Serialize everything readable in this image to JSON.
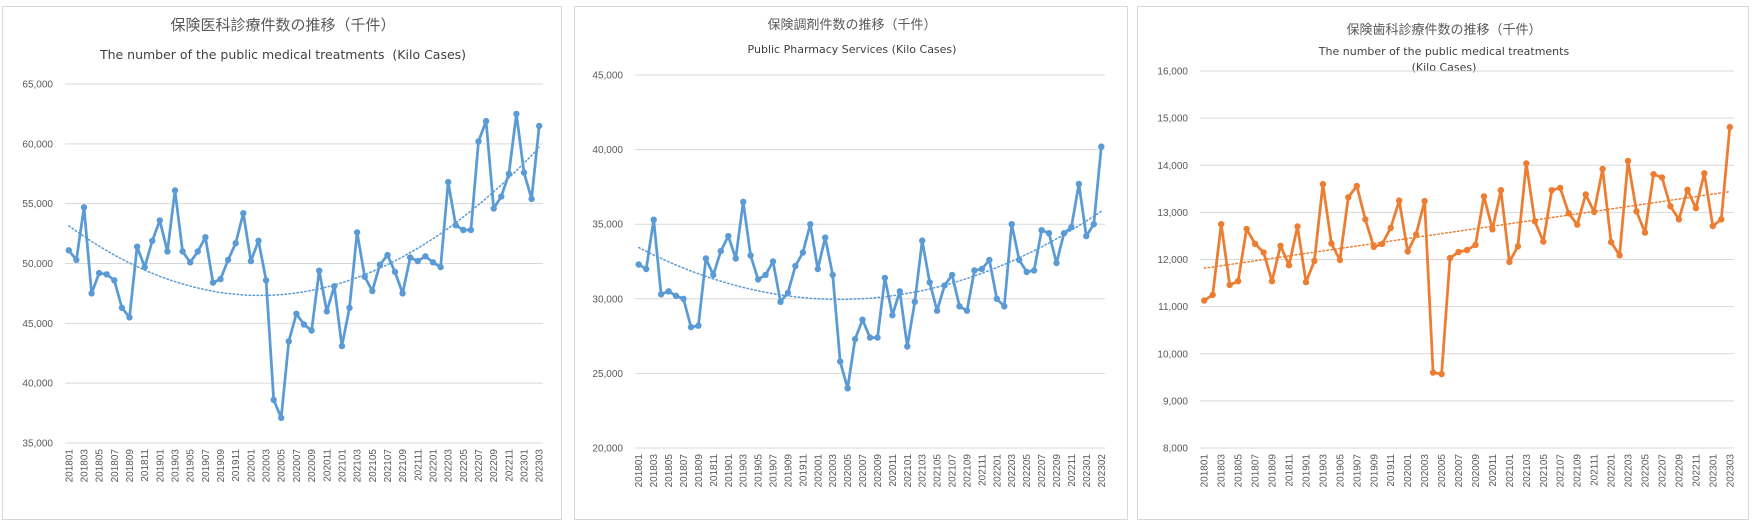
{
  "chart_data": [
    {
      "type": "line",
      "title": "保険医科診療件数の推移（千件）",
      "subtitle_lines": [
        "The number of the public medical treatments  (Kilo Cases)"
      ],
      "ylim": [
        35000,
        65000
      ],
      "yticks": [
        "35,000",
        "40,000",
        "45,000",
        "50,000",
        "55,000",
        "60,000",
        "65,000"
      ],
      "ytick_values": [
        35000,
        40000,
        45000,
        50000,
        55000,
        60000,
        65000
      ],
      "xtick_labels": [
        "201801",
        "201803",
        "201805",
        "201807",
        "201809",
        "201811",
        "201901",
        "201903",
        "201905",
        "201907",
        "201909",
        "201911",
        "202001",
        "202003",
        "202005",
        "202007",
        "202009",
        "202011",
        "202101",
        "202103",
        "202105",
        "202107",
        "202109",
        "202111",
        "202201",
        "202203",
        "202205",
        "202207",
        "202209",
        "202211",
        "202301",
        "202303"
      ],
      "trendline": "polynomial (dotted)",
      "grid": true,
      "color": "#5b9bd5",
      "series": [
        {
          "values": [
            51100,
            50300,
            54700,
            47500,
            49200,
            49100,
            48600,
            46300,
            45500,
            51400,
            49700,
            51900,
            53600,
            51000,
            56100,
            51000,
            50100,
            51000,
            52200,
            48400,
            48700,
            50300,
            51700,
            54200,
            50200,
            51900,
            48600,
            38600,
            37100,
            43500,
            45800,
            44900,
            44400,
            49400,
            46000,
            48100,
            43100,
            46300,
            52600,
            48900,
            47700,
            49900,
            50700,
            49300,
            47500,
            50500,
            50200,
            50600,
            50100,
            49700,
            56800,
            53200,
            52800,
            52800,
            60200,
            61900,
            54600,
            55600,
            57500,
            62500,
            57600,
            55400,
            61500
          ]
        }
      ]
    },
    {
      "type": "line",
      "title": "保険調剤件数の推移（千件）",
      "subtitle_lines": [
        "Public Pharmacy Services (Kilo Cases)"
      ],
      "ylim": [
        20000,
        45000
      ],
      "yticks": [
        "20,000",
        "25,000",
        "30,000",
        "35,000",
        "40,000",
        "45,000"
      ],
      "ytick_values": [
        20000,
        25000,
        30000,
        35000,
        40000,
        45000
      ],
      "xtick_labels": [
        "201801",
        "201803",
        "201805",
        "201807",
        "201809",
        "201811",
        "201901",
        "201903",
        "201905",
        "201907",
        "201909",
        "201911",
        "202001",
        "202003",
        "202005",
        "202007",
        "202009",
        "202011",
        "202101",
        "202103",
        "202105",
        "202107",
        "202109",
        "202111",
        "202201",
        "202203",
        "202205",
        "202207",
        "202209",
        "202211",
        "202301",
        "202302"
      ],
      "trendline": "polynomial (dotted)",
      "grid": true,
      "color": "#5b9bd5",
      "series": [
        {
          "values": [
            32300,
            32000,
            35300,
            30300,
            30500,
            30200,
            30000,
            28100,
            28200,
            32700,
            31600,
            33200,
            34200,
            32700,
            36500,
            32900,
            31300,
            31600,
            32500,
            29800,
            30400,
            32200,
            33100,
            35000,
            32000,
            34100,
            31600,
            25800,
            24000,
            27300,
            28600,
            27400,
            27400,
            31400,
            28900,
            30500,
            26800,
            29800,
            33900,
            31100,
            29200,
            30900,
            31600,
            29500,
            29200,
            31900,
            32000,
            32600,
            30000,
            29500,
            35000,
            32600,
            31800,
            31900,
            34600,
            34400,
            32400,
            34400,
            34800,
            37700,
            34200,
            35000,
            40200
          ]
        }
      ]
    },
    {
      "type": "line",
      "title": "保険歯科診療件数の推移（千件）",
      "subtitle_lines": [
        "The number of the public medical treatments",
        "(Kilo Cases)"
      ],
      "ylim": [
        8000,
        16000
      ],
      "yticks": [
        "8,000",
        "9,000",
        "10,000",
        "11,000",
        "12,000",
        "13,000",
        "14,000",
        "15,000",
        "16,000"
      ],
      "ytick_values": [
        8000,
        9000,
        10000,
        11000,
        12000,
        13000,
        14000,
        15000,
        16000
      ],
      "xtick_labels": [
        "201801",
        "201803",
        "201805",
        "201807",
        "201809",
        "201811",
        "201901",
        "201903",
        "201905",
        "201907",
        "201909",
        "201911",
        "202001",
        "202003",
        "202005",
        "202007",
        "202009",
        "202011",
        "202101",
        "202103",
        "202105",
        "202107",
        "202109",
        "202111",
        "202201",
        "202203",
        "202205",
        "202207",
        "202209",
        "202211",
        "202301",
        "202303"
      ],
      "trendline": "linear (dotted)",
      "grid": true,
      "color": "#ed7d31",
      "series": [
        {
          "values": [
            11130,
            11250,
            12750,
            11460,
            11540,
            12650,
            12330,
            12150,
            11540,
            12290,
            11880,
            12700,
            11520,
            11970,
            13600,
            12340,
            11990,
            13320,
            13560,
            12850,
            12270,
            12330,
            12670,
            13250,
            12170,
            12530,
            13240,
            9600,
            9570,
            12030,
            12160,
            12200,
            12310,
            13340,
            12640,
            13470,
            11950,
            12280,
            14040,
            12810,
            12380,
            13470,
            13520,
            12980,
            12740,
            13380,
            13010,
            13920,
            12370,
            12090,
            14090,
            13020,
            12570,
            13810,
            13740,
            13130,
            12850,
            13480,
            13090,
            13830,
            12710,
            12850,
            14810
          ]
        }
      ]
    }
  ]
}
